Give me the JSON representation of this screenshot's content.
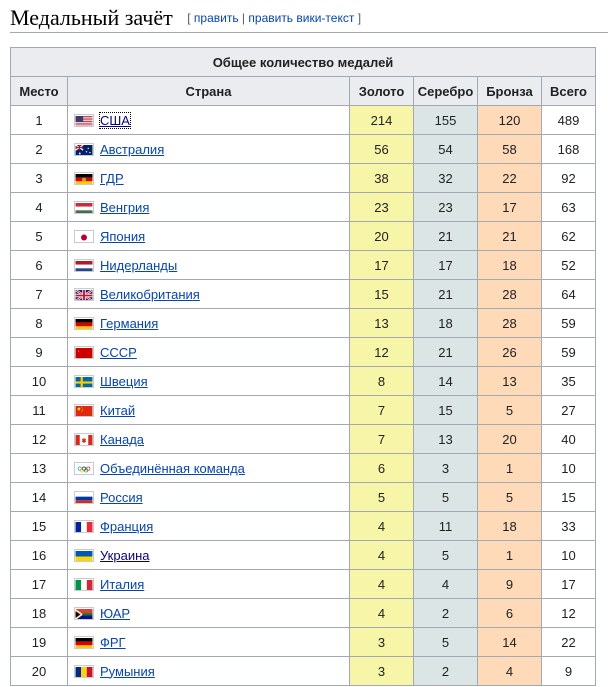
{
  "section": {
    "title": "Медальный зачёт",
    "edit_bracket_open": "[",
    "edit_label": "править",
    "separator": "|",
    "edit_wiki_label": "править вики-текст",
    "edit_bracket_close": "]"
  },
  "table": {
    "caption": "Общее количество медалей",
    "headers": {
      "place": "Место",
      "country": "Страна",
      "gold": "Золото",
      "silver": "Серебро",
      "bronze": "Бронза",
      "total": "Всего"
    },
    "rows": [
      {
        "place": "1",
        "country": "США",
        "flag": "flag-usa-icon",
        "gold": "214",
        "silver": "155",
        "bronze": "120",
        "total": "489"
      },
      {
        "place": "2",
        "country": "Австралия",
        "flag": "flag-australia-icon",
        "gold": "56",
        "silver": "54",
        "bronze": "58",
        "total": "168"
      },
      {
        "place": "3",
        "country": "ГДР",
        "flag": "flag-gdr-icon",
        "gold": "38",
        "silver": "32",
        "bronze": "22",
        "total": "92"
      },
      {
        "place": "4",
        "country": "Венгрия",
        "flag": "flag-hungary-icon",
        "gold": "23",
        "silver": "23",
        "bronze": "17",
        "total": "63"
      },
      {
        "place": "5",
        "country": "Япония",
        "flag": "flag-japan-icon",
        "gold": "20",
        "silver": "21",
        "bronze": "21",
        "total": "62"
      },
      {
        "place": "6",
        "country": "Нидерланды",
        "flag": "flag-netherlands-icon",
        "gold": "17",
        "silver": "17",
        "bronze": "18",
        "total": "52"
      },
      {
        "place": "7",
        "country": "Великобритания",
        "flag": "flag-uk-icon",
        "gold": "15",
        "silver": "21",
        "bronze": "28",
        "total": "64"
      },
      {
        "place": "8",
        "country": "Германия",
        "flag": "flag-germany-icon",
        "gold": "13",
        "silver": "18",
        "bronze": "28",
        "total": "59"
      },
      {
        "place": "9",
        "country": "СССР",
        "flag": "flag-ussr-icon",
        "gold": "12",
        "silver": "21",
        "bronze": "26",
        "total": "59"
      },
      {
        "place": "10",
        "country": "Швеция",
        "flag": "flag-sweden-icon",
        "gold": "8",
        "silver": "14",
        "bronze": "13",
        "total": "35"
      },
      {
        "place": "11",
        "country": "Китай",
        "flag": "flag-china-icon",
        "gold": "7",
        "silver": "15",
        "bronze": "5",
        "total": "27"
      },
      {
        "place": "12",
        "country": "Канада",
        "flag": "flag-canada-icon",
        "gold": "7",
        "silver": "13",
        "bronze": "20",
        "total": "40"
      },
      {
        "place": "13",
        "country": "Объединённая команда",
        "flag": "olympic-rings-icon",
        "gold": "6",
        "silver": "3",
        "bronze": "1",
        "total": "10"
      },
      {
        "place": "14",
        "country": "Россия",
        "flag": "flag-russia-icon",
        "gold": "5",
        "silver": "5",
        "bronze": "5",
        "total": "15"
      },
      {
        "place": "15",
        "country": "Франция",
        "flag": "flag-france-icon",
        "gold": "4",
        "silver": "11",
        "bronze": "18",
        "total": "33"
      },
      {
        "place": "16",
        "country": "Украина",
        "flag": "flag-ukraine-icon",
        "gold": "4",
        "silver": "5",
        "bronze": "1",
        "total": "10"
      },
      {
        "place": "17",
        "country": "Италия",
        "flag": "flag-italy-icon",
        "gold": "4",
        "silver": "4",
        "bronze": "9",
        "total": "17"
      },
      {
        "place": "18",
        "country": "ЮАР",
        "flag": "flag-south-africa-icon",
        "gold": "4",
        "silver": "2",
        "bronze": "6",
        "total": "12"
      },
      {
        "place": "19",
        "country": "ФРГ",
        "flag": "flag-frg-icon",
        "gold": "3",
        "silver": "5",
        "bronze": "14",
        "total": "22"
      },
      {
        "place": "20",
        "country": "Румыния",
        "flag": "flag-romania-icon",
        "gold": "3",
        "silver": "2",
        "bronze": "4",
        "total": "9"
      }
    ]
  },
  "colors": {
    "gold": "#f7f6a8",
    "silver": "#dce5e5",
    "bronze": "#ffdab9",
    "header": "#eaecf0",
    "link": "#0645ad"
  }
}
